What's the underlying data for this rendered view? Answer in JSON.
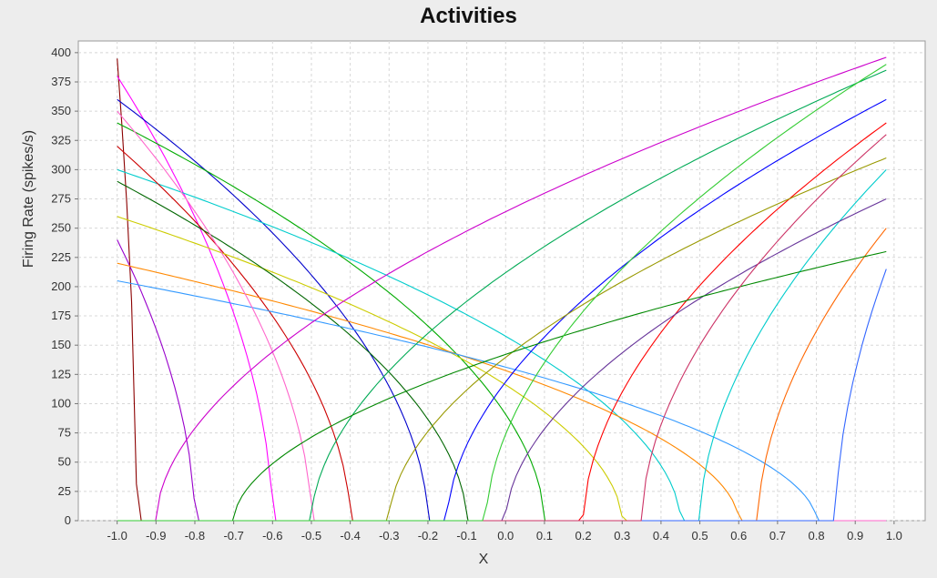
{
  "chart_data": {
    "type": "line",
    "title": "Activities",
    "xlabel": "X",
    "ylabel": "Firing Rate (spikes/s)",
    "xlim": [
      -1.1,
      1.08
    ],
    "ylim": [
      0,
      410
    ],
    "x_ticks": [
      "-1.0",
      "-0.9",
      "-0.8",
      "-0.7",
      "-0.6",
      "-0.5",
      "-0.4",
      "-0.3",
      "-0.2",
      "-0.1",
      "0.0",
      "0.1",
      "0.2",
      "0.3",
      "0.4",
      "0.5",
      "0.6",
      "0.7",
      "0.8",
      "0.9",
      "1.0"
    ],
    "y_ticks": [
      "0",
      "25",
      "50",
      "75",
      "100",
      "125",
      "150",
      "175",
      "200",
      "225",
      "250",
      "275",
      "300",
      "325",
      "350",
      "375",
      "400"
    ],
    "grid": true,
    "legend": "none",
    "x_domain": [
      -1.0,
      0.98
    ],
    "series_model": "rectified tuning curve: rate = max(0, gain * (encoder * x - threshold))^0.5 scaled to max_rate at the x endpoint",
    "series": [
      {
        "encoder": -1,
        "threshold": -0.95,
        "max_rate": 395,
        "color": "#8b0000"
      },
      {
        "encoder": -1,
        "threshold": -0.6,
        "max_rate": 380,
        "color": "#ff00ff"
      },
      {
        "encoder": -1,
        "threshold": -0.2,
        "max_rate": 360,
        "color": "#0000cc"
      },
      {
        "encoder": -1,
        "threshold": 0.1,
        "max_rate": 340,
        "color": "#00aa00"
      },
      {
        "encoder": -1,
        "threshold": 0.45,
        "max_rate": 300,
        "color": "#00cccc"
      },
      {
        "encoder": -1,
        "threshold": -0.4,
        "max_rate": 320,
        "color": "#cc0000"
      },
      {
        "encoder": -1,
        "threshold": 0.3,
        "max_rate": 260,
        "color": "#cccc00"
      },
      {
        "encoder": -1,
        "threshold": -0.8,
        "max_rate": 240,
        "color": "#9900cc"
      },
      {
        "encoder": -1,
        "threshold": 0.6,
        "max_rate": 220,
        "color": "#ff8800"
      },
      {
        "encoder": -1,
        "threshold": -0.1,
        "max_rate": 290,
        "color": "#006600"
      },
      {
        "encoder": -1,
        "threshold": 0.8,
        "max_rate": 205,
        "color": "#3399ff"
      },
      {
        "encoder": -1,
        "threshold": -0.5,
        "max_rate": 350,
        "color": "#ff66cc"
      },
      {
        "encoder": 1,
        "threshold": -0.9,
        "max_rate": 396,
        "color": "#cc00cc"
      },
      {
        "encoder": 1,
        "threshold": -0.5,
        "max_rate": 385,
        "color": "#00aa55"
      },
      {
        "encoder": 1,
        "threshold": -0.15,
        "max_rate": 360,
        "color": "#0000ff"
      },
      {
        "encoder": 1,
        "threshold": 0.2,
        "max_rate": 340,
        "color": "#ff0000"
      },
      {
        "encoder": 1,
        "threshold": 0.5,
        "max_rate": 300,
        "color": "#00cccc"
      },
      {
        "encoder": 1,
        "threshold": -0.3,
        "max_rate": 310,
        "color": "#999900"
      },
      {
        "encoder": 1,
        "threshold": 0.0,
        "max_rate": 275,
        "color": "#663399"
      },
      {
        "encoder": 1,
        "threshold": 0.65,
        "max_rate": 250,
        "color": "#ff6600"
      },
      {
        "encoder": 1,
        "threshold": -0.7,
        "max_rate": 230,
        "color": "#008800"
      },
      {
        "encoder": 1,
        "threshold": 0.85,
        "max_rate": 215,
        "color": "#3366ff"
      },
      {
        "encoder": 1,
        "threshold": 0.35,
        "max_rate": 330,
        "color": "#cc3366"
      },
      {
        "encoder": 1,
        "threshold": -0.05,
        "max_rate": 390,
        "color": "#33cc33"
      }
    ]
  }
}
